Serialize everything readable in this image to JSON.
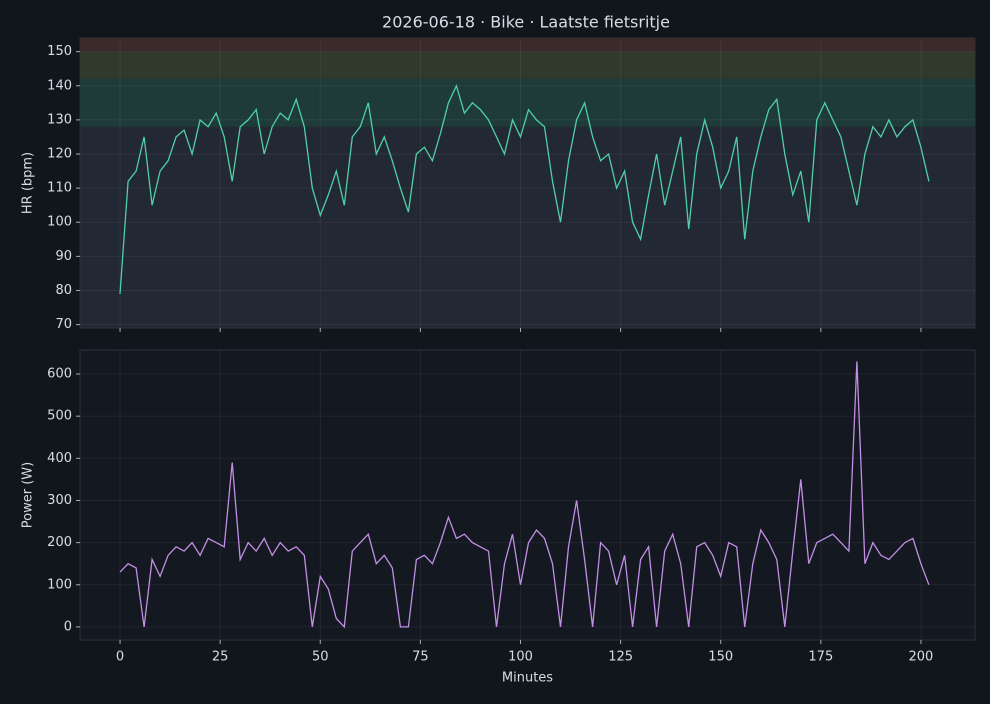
{
  "title": "2026-06-18 · Bike · Laatste fietsritje",
  "chart_data": [
    {
      "type": "line",
      "ylabel": "HR (bpm)",
      "xlim": [
        -10,
        213.5
      ],
      "ylim": [
        69,
        154
      ],
      "yticks": [
        70,
        80,
        90,
        100,
        110,
        120,
        130,
        140,
        150
      ],
      "xticks": [
        0,
        25,
        50,
        75,
        100,
        125,
        150,
        175,
        200
      ],
      "grid": true,
      "zones": [
        {
          "from": 128,
          "to": 142,
          "color": "#1e3b3a"
        },
        {
          "from": 142,
          "to": 150,
          "color": "#2f3a2c"
        },
        {
          "from": 150,
          "to": 154,
          "color": "#3a2a2a"
        }
      ],
      "x": [
        0,
        2,
        4,
        6,
        8,
        10,
        12,
        14,
        16,
        18,
        20,
        22,
        24,
        26,
        28,
        30,
        32,
        34,
        36,
        38,
        40,
        42,
        44,
        46,
        48,
        50,
        52,
        54,
        56,
        58,
        60,
        62,
        64,
        66,
        68,
        70,
        72,
        74,
        76,
        78,
        80,
        82,
        84,
        86,
        88,
        90,
        92,
        94,
        96,
        98,
        100,
        102,
        104,
        106,
        108,
        110,
        112,
        114,
        116,
        118,
        120,
        122,
        124,
        126,
        128,
        130,
        132,
        134,
        136,
        138,
        140,
        142,
        144,
        146,
        148,
        150,
        152,
        154,
        156,
        158,
        160,
        162,
        164,
        166,
        168,
        170,
        172,
        174,
        176,
        178,
        180,
        182,
        184,
        186,
        188,
        190,
        192,
        194,
        196,
        198,
        200,
        202
      ],
      "series": [
        {
          "name": "HR",
          "color": "#4fd1a5",
          "values": [
            79,
            112,
            115,
            125,
            105,
            115,
            118,
            125,
            127,
            120,
            130,
            128,
            132,
            125,
            112,
            128,
            130,
            133,
            120,
            128,
            132,
            130,
            136,
            128,
            110,
            102,
            108,
            115,
            105,
            125,
            128,
            135,
            120,
            125,
            118,
            110,
            103,
            120,
            122,
            118,
            126,
            135,
            140,
            132,
            135,
            133,
            130,
            125,
            120,
            130,
            125,
            133,
            130,
            128,
            112,
            100,
            118,
            130,
            135,
            125,
            118,
            120,
            110,
            115,
            100,
            95,
            108,
            120,
            105,
            115,
            125,
            98,
            120,
            130,
            122,
            110,
            115,
            125,
            95,
            115,
            125,
            133,
            136,
            120,
            108,
            115,
            100,
            130,
            135,
            130,
            125,
            115,
            105,
            120,
            128,
            125,
            130,
            125,
            128,
            130,
            122,
            112
          ]
        }
      ]
    },
    {
      "type": "line",
      "ylabel": "Power (W)",
      "xlabel": "Minutes",
      "xlim": [
        -10,
        213.5
      ],
      "ylim": [
        -31,
        657
      ],
      "yticks": [
        0,
        100,
        200,
        300,
        400,
        500,
        600
      ],
      "xticks": [
        0,
        25,
        50,
        75,
        100,
        125,
        150,
        175,
        200
      ],
      "grid": true,
      "x": [
        0,
        2,
        4,
        6,
        8,
        10,
        12,
        14,
        16,
        18,
        20,
        22,
        24,
        26,
        28,
        30,
        32,
        34,
        36,
        38,
        40,
        42,
        44,
        46,
        48,
        50,
        52,
        54,
        56,
        58,
        60,
        62,
        64,
        66,
        68,
        70,
        72,
        74,
        76,
        78,
        80,
        82,
        84,
        86,
        88,
        90,
        92,
        94,
        96,
        98,
        100,
        102,
        104,
        106,
        108,
        110,
        112,
        114,
        116,
        118,
        120,
        122,
        124,
        126,
        128,
        130,
        132,
        134,
        136,
        138,
        140,
        142,
        144,
        146,
        148,
        150,
        152,
        154,
        156,
        158,
        160,
        162,
        164,
        166,
        168,
        170,
        172,
        174,
        176,
        178,
        180,
        182,
        184,
        186,
        188,
        190,
        192,
        194,
        196,
        198,
        200,
        202
      ],
      "series": [
        {
          "name": "Power",
          "color": "#c38fe6",
          "values": [
            130,
            150,
            140,
            0,
            160,
            120,
            170,
            190,
            180,
            200,
            170,
            210,
            200,
            190,
            390,
            160,
            200,
            180,
            210,
            170,
            200,
            180,
            190,
            170,
            0,
            120,
            90,
            20,
            0,
            180,
            200,
            220,
            150,
            170,
            140,
            0,
            0,
            160,
            170,
            150,
            200,
            260,
            210,
            220,
            200,
            190,
            180,
            0,
            150,
            220,
            100,
            200,
            230,
            210,
            150,
            0,
            190,
            300,
            160,
            0,
            200,
            180,
            100,
            170,
            0,
            160,
            190,
            0,
            180,
            220,
            150,
            0,
            190,
            200,
            170,
            120,
            200,
            190,
            0,
            150,
            230,
            200,
            160,
            0,
            180,
            350,
            150,
            200,
            210,
            220,
            200,
            180,
            630,
            150,
            200,
            170,
            160,
            180,
            200,
            210,
            150,
            100
          ]
        }
      ]
    }
  ]
}
